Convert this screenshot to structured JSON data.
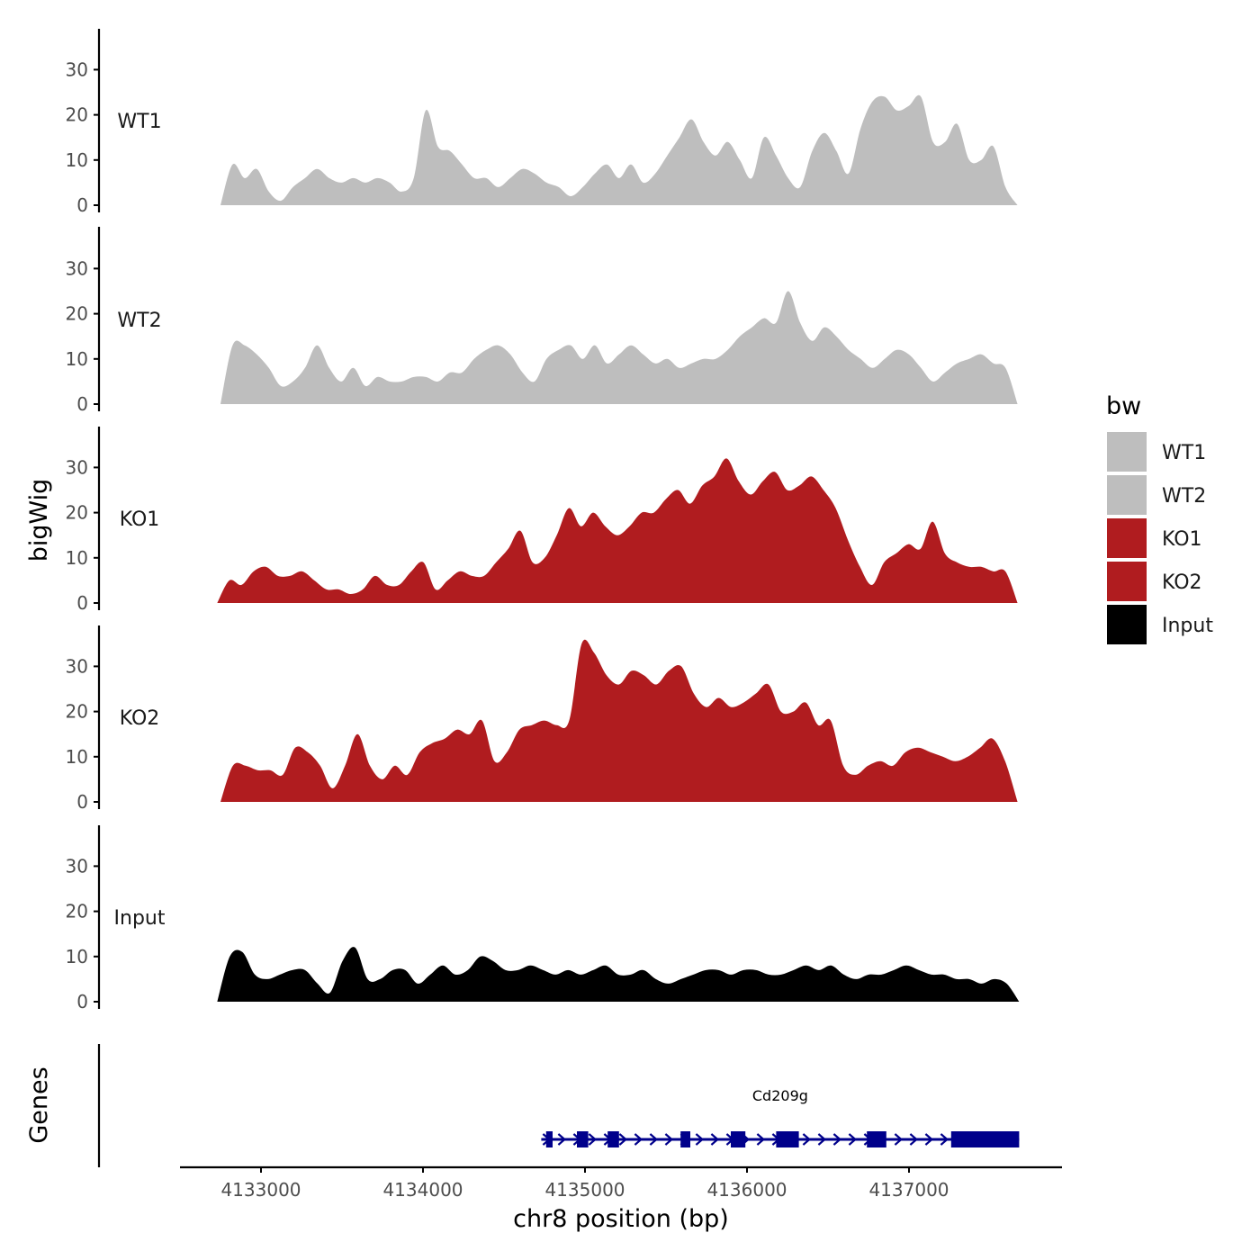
{
  "chart_data": {
    "type": "area",
    "title": "",
    "xlabel": "chr8 position (bp)",
    "ylabel_tracks": "bigWig",
    "ylabel_genes": "Genes",
    "xlim": [
      4132500,
      4137800
    ],
    "x_ticks": [
      4133000,
      4134000,
      4135000,
      4136000,
      4137000
    ],
    "x_tick_labels": [
      "4133000",
      "4134000",
      "4135000",
      "4136000",
      "4137000"
    ],
    "ylim": [
      0,
      38
    ],
    "y_ticks": [
      0,
      10,
      20,
      30
    ],
    "y_tick_labels": [
      "0",
      "10",
      "20",
      "30"
    ],
    "legend": {
      "title": "bw",
      "position": "right",
      "entries": [
        {
          "label": "WT1",
          "color": "#bebebe"
        },
        {
          "label": "WT2",
          "color": "#bebebe"
        },
        {
          "label": "KO1",
          "color": "#b01c1f"
        },
        {
          "label": "KO2",
          "color": "#b01c1f"
        },
        {
          "label": "Input",
          "color": "#000000"
        }
      ]
    },
    "series": [
      {
        "name": "WT1",
        "color": "#bebebe",
        "x_start": 4132750,
        "x_end": 4137670,
        "values": [
          0,
          9,
          6,
          8,
          3,
          1,
          4,
          6,
          8,
          6,
          5,
          6,
          5,
          6,
          5,
          3,
          6,
          21,
          13,
          12,
          9,
          6,
          6,
          4,
          6,
          8,
          7,
          5,
          4,
          2,
          4,
          7,
          9,
          6,
          9,
          5,
          7,
          11,
          15,
          19,
          14,
          11,
          14,
          10,
          6,
          15,
          11,
          6,
          4,
          12,
          16,
          12,
          7,
          17,
          23,
          24,
          21,
          22,
          24,
          14,
          14,
          18,
          10,
          10,
          13,
          4,
          0
        ]
      },
      {
        "name": "WT2",
        "color": "#bebebe",
        "x_start": 4132750,
        "x_end": 4137670,
        "values": [
          0,
          13,
          13,
          11,
          8,
          4,
          5,
          8,
          13,
          8,
          5,
          8,
          4,
          6,
          5,
          5,
          6,
          6,
          5,
          7,
          7,
          10,
          12,
          13,
          11,
          7,
          5,
          10,
          12,
          13,
          10,
          13,
          9,
          11,
          13,
          11,
          9,
          10,
          8,
          9,
          10,
          10,
          12,
          15,
          17,
          19,
          18,
          25,
          18,
          14,
          17,
          15,
          12,
          10,
          8,
          10,
          12,
          11,
          8,
          5,
          7,
          9,
          10,
          11,
          9,
          8,
          0
        ]
      },
      {
        "name": "KO1",
        "color": "#b01c1f",
        "x_start": 4132730,
        "x_end": 4137670,
        "values": [
          0,
          5,
          4,
          7,
          8,
          6,
          6,
          7,
          5,
          3,
          3,
          2,
          3,
          6,
          4,
          4,
          7,
          9,
          3,
          5,
          7,
          6,
          6,
          9,
          12,
          16,
          9,
          10,
          15,
          21,
          17,
          20,
          17,
          15,
          17,
          20,
          20,
          23,
          25,
          22,
          26,
          28,
          32,
          27,
          24,
          27,
          29,
          25,
          26,
          28,
          25,
          21,
          14,
          8,
          4,
          9,
          11,
          13,
          12,
          18,
          11,
          9,
          8,
          8,
          7,
          7,
          0
        ]
      },
      {
        "name": "KO2",
        "color": "#b01c1f",
        "x_start": 4132750,
        "x_end": 4137670,
        "values": [
          0,
          8,
          8,
          7,
          7,
          6,
          12,
          11,
          8,
          3,
          8,
          15,
          8,
          5,
          8,
          6,
          11,
          13,
          14,
          16,
          15,
          18,
          9,
          11,
          16,
          17,
          18,
          17,
          18,
          35,
          33,
          28,
          26,
          29,
          28,
          26,
          29,
          30,
          24,
          21,
          23,
          21,
          22,
          24,
          26,
          20,
          20,
          22,
          17,
          18,
          8,
          6,
          8,
          9,
          8,
          11,
          12,
          11,
          10,
          9,
          10,
          12,
          14,
          9,
          0
        ]
      },
      {
        "name": "Input",
        "color": "#000000",
        "x_start": 4132730,
        "x_end": 4137680,
        "values": [
          0,
          10,
          11,
          6,
          5,
          6,
          7,
          7,
          4,
          2,
          9,
          12,
          5,
          5,
          7,
          7,
          4,
          6,
          8,
          6,
          7,
          10,
          9,
          7,
          7,
          8,
          7,
          6,
          7,
          6,
          7,
          8,
          6,
          6,
          7,
          5,
          4,
          5,
          6,
          7,
          7,
          6,
          7,
          7,
          6,
          6,
          7,
          8,
          7,
          8,
          6,
          5,
          6,
          6,
          7,
          8,
          7,
          6,
          6,
          5,
          5,
          4,
          5,
          4,
          0
        ]
      }
    ],
    "genes": [
      {
        "name": "Cd209g",
        "start": 4134730,
        "end": 4137680,
        "strand": "+",
        "color": "#00008b",
        "exons": [
          [
            4134760,
            4134800
          ],
          [
            4134950,
            4135020
          ],
          [
            4135140,
            4135210
          ],
          [
            4135590,
            4135650
          ],
          [
            4135900,
            4135990
          ],
          [
            4136180,
            4136320
          ],
          [
            4136740,
            4136860
          ],
          [
            4137260,
            4137680
          ]
        ]
      }
    ]
  }
}
